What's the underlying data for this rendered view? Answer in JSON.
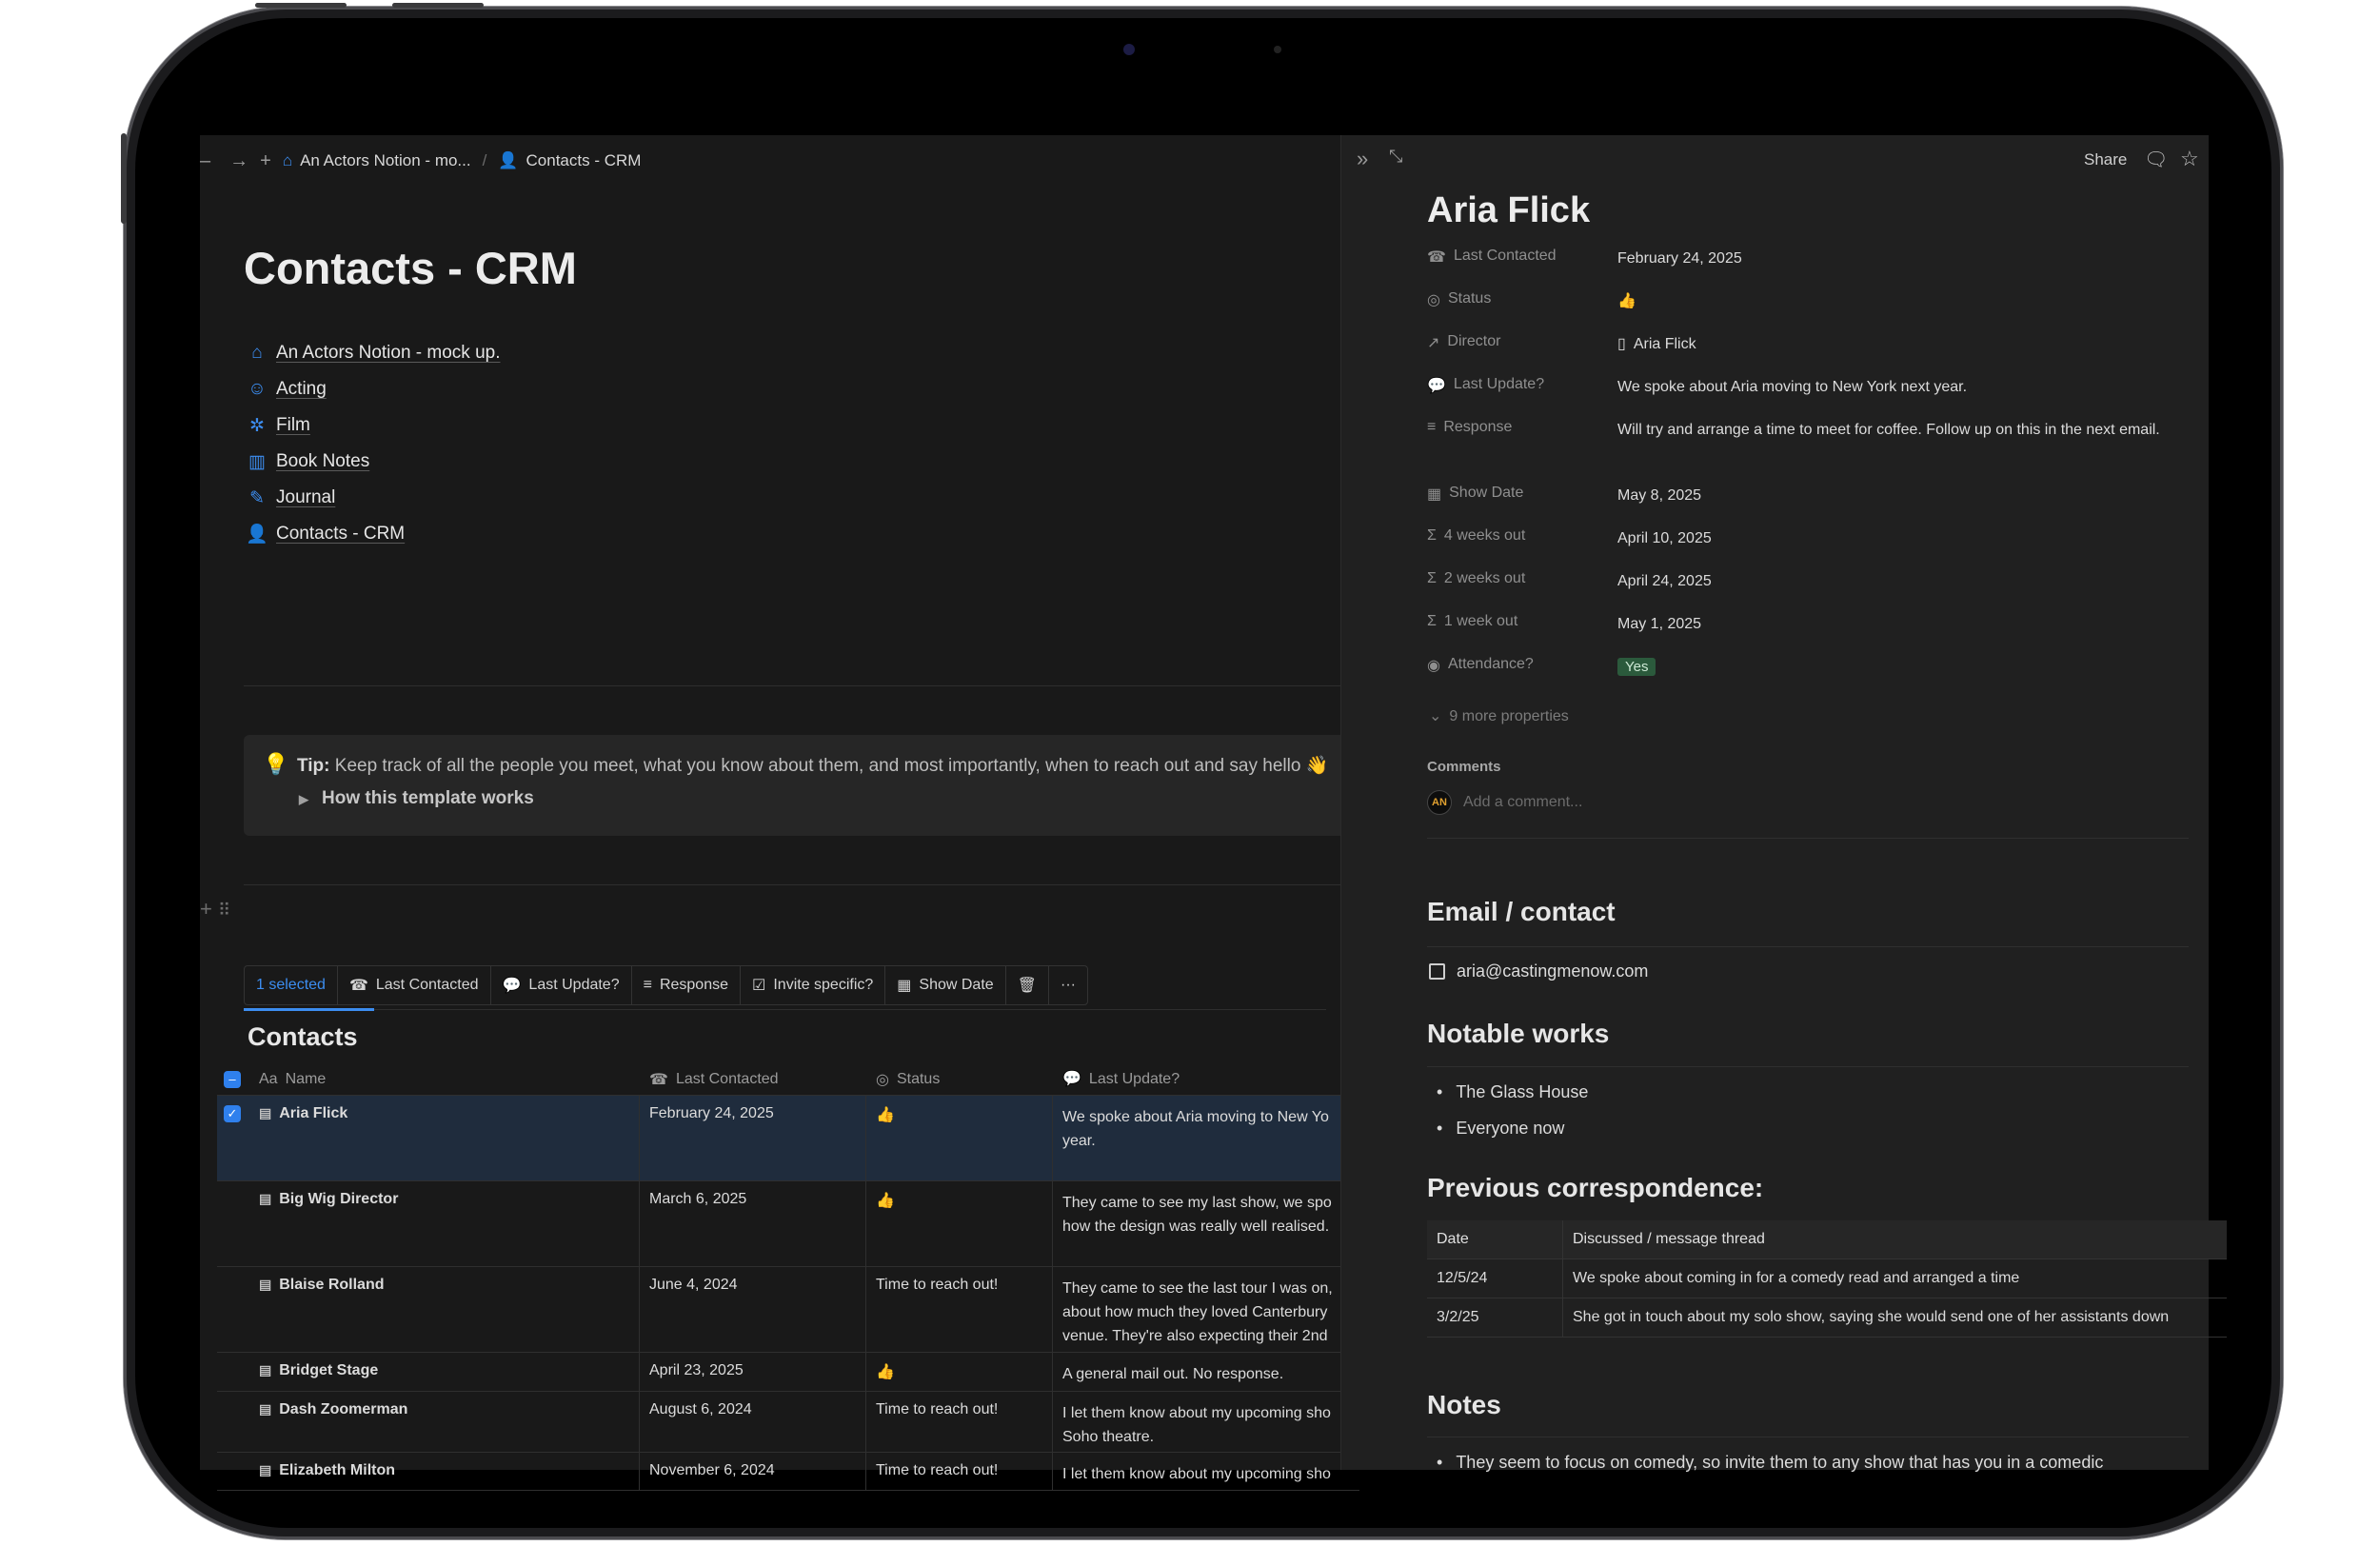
{
  "breadcrumb": {
    "workspace": "An Actors Notion - mo...",
    "page": "Contacts - CRM"
  },
  "page_title": "Contacts - CRM",
  "links": [
    {
      "label": "An Actors Notion - mock up.",
      "icon": "home-icon"
    },
    {
      "label": "Acting",
      "icon": "mask-icon"
    },
    {
      "label": "Film",
      "icon": "film-icon"
    },
    {
      "label": "Book Notes",
      "icon": "book-icon"
    },
    {
      "label": "Journal",
      "icon": "pen-icon"
    },
    {
      "label": "Contacts - CRM",
      "icon": "contacts-icon"
    }
  ],
  "tip": {
    "label": "Tip:",
    "text": "Keep track of all the people you meet, what you know about them, and most importantly, when to reach out and say hello 👋",
    "toggle": "How this template works"
  },
  "toolbar": {
    "selected": "1 selected",
    "last_contacted": "Last Contacted",
    "last_update": "Last Update?",
    "response": "Response",
    "invite": "Invite specific?",
    "show_date": "Show Date",
    "more": "···"
  },
  "db_title": "Contacts",
  "columns": {
    "name": "Name",
    "name_prefix": "Aa",
    "last_contacted": "Last Contacted",
    "status": "Status",
    "last_update": "Last Update?"
  },
  "rows": [
    {
      "name": "Aria Flick",
      "date": "February 24, 2025",
      "status": "👍",
      "update": [
        "We spoke about Aria moving to New Yo",
        "year."
      ]
    },
    {
      "name": "Big Wig Director",
      "date": "March 6, 2025",
      "status": "👍",
      "update": [
        "They came to see my last show, we spo",
        "how the design was really well realised."
      ]
    },
    {
      "name": "Blaise Rolland",
      "date": "June 4, 2024",
      "status": "Time to reach out!",
      "update": [
        "They came to see the last tour I was on,",
        "about how much they loved Canterbury",
        "venue.  They're also expecting their 2nd"
      ]
    },
    {
      "name": "Bridget Stage",
      "date": "April 23, 2025",
      "status": "👍",
      "update": [
        "A general mail out. No response."
      ]
    },
    {
      "name": "Dash Zoomerman",
      "date": "August 6, 2024",
      "status": "Time to reach out!",
      "update": [
        "I let them know about my upcoming sho",
        "Soho theatre."
      ]
    },
    {
      "name": "Elizabeth Milton",
      "date": "November 6, 2024",
      "status": "Time to reach out!",
      "update": [
        "I let them know about my upcoming sho"
      ]
    }
  ],
  "panel": {
    "share": "Share",
    "name": "Aria Flick",
    "props": [
      {
        "key": "Last Contacted",
        "value": "February 24, 2025",
        "icon": "phone-icon"
      },
      {
        "key": "Status",
        "value": "👍",
        "icon": "status-icon"
      },
      {
        "key": "Director",
        "value": "Aria Flick",
        "icon": "relation-arrow-icon"
      },
      {
        "key": "Last Update?",
        "value": "We spoke about Aria moving to New York next year.",
        "icon": "chat-icon"
      },
      {
        "key": "Response",
        "value": "Will try and arrange a time to meet for coffee. Follow up on this in the next email.",
        "icon": "text-icon"
      },
      {
        "key": "Show Date",
        "value": "May 8, 2025",
        "icon": "calendar-icon"
      },
      {
        "key": "4 weeks out",
        "value": "April 10, 2025",
        "icon": "sigma-icon"
      },
      {
        "key": "2 weeks out",
        "value": "April 24, 2025",
        "icon": "sigma-icon"
      },
      {
        "key": "1 week out",
        "value": "May 1, 2025",
        "icon": "sigma-icon"
      },
      {
        "key": "Attendance?",
        "value": "Yes",
        "icon": "select-icon"
      }
    ],
    "more_props": "9 more properties",
    "comments": "Comments",
    "comment_placeholder": "Add a comment...",
    "email_heading": "Email / contact",
    "email": "aria@castingmenow.com",
    "works_heading": "Notable works",
    "works": [
      "The Glass House",
      "Everyone now"
    ],
    "corr_heading": "Previous correspondence:",
    "corr_cols": [
      "Date",
      "Discussed / message thread"
    ],
    "corr_rows": [
      [
        "12/5/24",
        "We spoke about coming in for a comedy read and arranged a time"
      ],
      [
        "3/2/25",
        "She got in touch about my solo show, saying she would send one of her assistants down"
      ]
    ],
    "notes_heading": "Notes",
    "notes_first": "They seem to focus on comedy, so invite them to any show that has you in a comedic"
  }
}
